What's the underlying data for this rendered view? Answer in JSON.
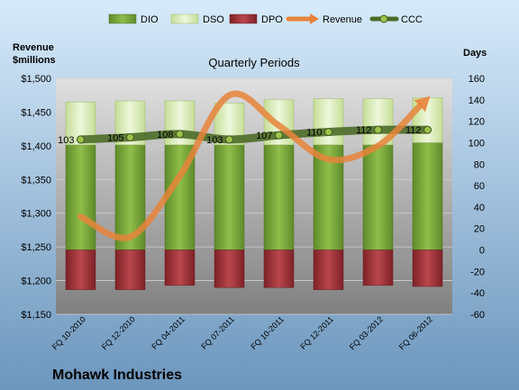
{
  "chart_data": {
    "type": "bar",
    "title": "Quarterly Periods",
    "company": "Mohawk Industries",
    "left_axis_title": "Revenue\n$millions",
    "right_axis_title": "Days",
    "categories": [
      "FQ 10-2010",
      "FQ 12-2010",
      "FQ 04-2011",
      "FQ 07-2011",
      "FQ 10-2011",
      "FQ 12-2011",
      "FQ 03-2012",
      "FQ 06-2012"
    ],
    "left_ylim": [
      1150,
      1500
    ],
    "left_ticks": [
      1150,
      1200,
      1250,
      1300,
      1350,
      1400,
      1450,
      1500
    ],
    "left_tick_labels": [
      "$1,150",
      "$1,200",
      "$1,250",
      "$1,300",
      "$1,350",
      "$1,400",
      "$1,450",
      "$1,500"
    ],
    "right_ylim": [
      -60,
      160
    ],
    "right_ticks": [
      -60,
      -40,
      -20,
      0,
      20,
      40,
      60,
      80,
      100,
      120,
      140,
      160
    ],
    "right_tick_labels": [
      "-60",
      "-40",
      "-20",
      "0",
      "20",
      "40",
      "60",
      "80",
      "100",
      "120",
      "140",
      "160"
    ],
    "legend_position": "top",
    "series": [
      {
        "name": "DIO",
        "axis": "right",
        "kind": "stacked-bar",
        "color": "#7aa63d",
        "values": [
          98,
          98,
          98,
          98,
          98,
          98,
          98,
          100
        ]
      },
      {
        "name": "DSO",
        "axis": "right",
        "kind": "stacked-bar",
        "color": "#d6eab4",
        "values": [
          40,
          41,
          41,
          39,
          42,
          43,
          43,
          42
        ]
      },
      {
        "name": "DPO",
        "axis": "right",
        "kind": "negative-bar",
        "color": "#a8343a",
        "values": [
          -37,
          -37,
          -33,
          -35,
          -35,
          -37,
          -33,
          -34
        ]
      },
      {
        "name": "Revenue",
        "axis": "left",
        "kind": "line",
        "color": "#e8843a",
        "values": [
          1295,
          1265,
          1355,
          1475,
          1430,
          1380,
          1400,
          1470
        ]
      },
      {
        "name": "CCC",
        "axis": "right",
        "kind": "line-markers",
        "color": "#4c6b28",
        "values": [
          103,
          105,
          108,
          103,
          107,
          110,
          112,
          112
        ]
      }
    ],
    "ccc_labels": [
      "103",
      "105",
      "108",
      "103",
      "107",
      "110",
      "112",
      "112"
    ],
    "grid": true,
    "colors": {
      "background_top": "#d7ebfb",
      "background_bottom": "#6c96bd",
      "plot_top": "#e0e0e0",
      "plot_bottom": "#808080",
      "gridline": "#d0d0d0"
    }
  }
}
